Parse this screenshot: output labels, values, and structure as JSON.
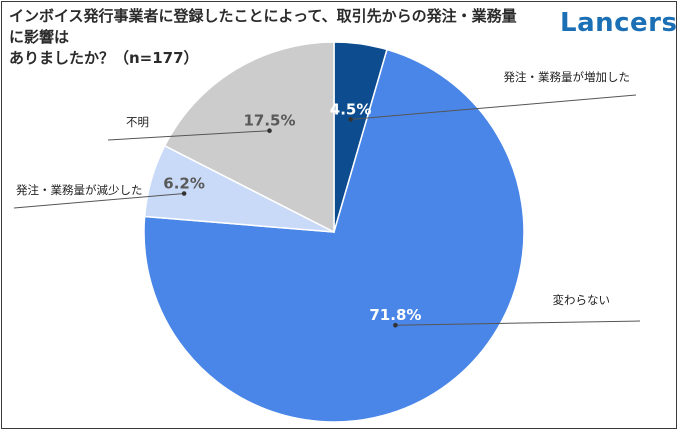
{
  "header": {
    "title_line1": "インボイス発行事業者に登録したことによって、取引先からの発注・業務量に影響は",
    "title_line2": "ありましたか？（n=177）",
    "logo": "Lancers"
  },
  "colors": {
    "increase": "#0d4d8f",
    "nochange": "#4a86e8",
    "decrease": "#c9daf8",
    "unknown": "#cccccc"
  },
  "chart_data": {
    "type": "pie",
    "title": "インボイス発行事業者に登録したことによって、取引先からの発注・業務量に影響はありましたか？（n=177）",
    "start": "12 o'clock, clockwise",
    "slices": [
      {
        "label": "発注・業務量が増加した",
        "value": 4.5,
        "display": "4.5%",
        "color_key": "increase"
      },
      {
        "label": "変わらない",
        "value": 71.8,
        "display": "71.8%",
        "color_key": "nochange"
      },
      {
        "label": "発注・業務量が減少した",
        "value": 6.2,
        "display": "6.2%",
        "color_key": "decrease"
      },
      {
        "label": "不明",
        "value": 17.5,
        "display": "17.5%",
        "color_key": "unknown"
      }
    ]
  }
}
